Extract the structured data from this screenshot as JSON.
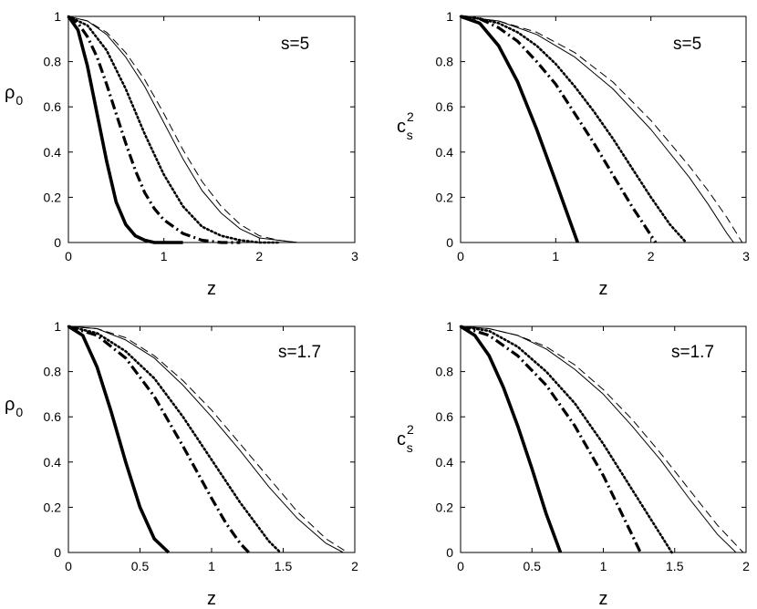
{
  "chart_data": [
    {
      "type": "line",
      "xlabel": "z",
      "ylabel": "ρ",
      "ylabel_sub": "0",
      "ylabel_sup": "",
      "annotation": "s=5",
      "xlim": [
        0,
        3
      ],
      "ylim": [
        0,
        1
      ],
      "xticks": [
        0,
        1,
        2,
        3
      ],
      "xtick_labels": [
        "0",
        "1",
        "2",
        "3"
      ],
      "yticks": [
        0,
        0.2,
        0.4,
        0.6,
        0.8,
        1
      ],
      "ytick_labels": [
        "0",
        "0.2",
        "0.4",
        "0.6",
        "0.8",
        "1"
      ],
      "series": [
        {
          "style": "thick-solid",
          "x": [
            0,
            0.1,
            0.2,
            0.3,
            0.4,
            0.5,
            0.6,
            0.7,
            0.8,
            0.9,
            1.0,
            1.2
          ],
          "y": [
            1.0,
            0.94,
            0.78,
            0.57,
            0.36,
            0.18,
            0.08,
            0.03,
            0.01,
            0.0,
            0.0,
            0.0
          ]
        },
        {
          "style": "dash-dot",
          "x": [
            0,
            0.1,
            0.2,
            0.3,
            0.4,
            0.5,
            0.6,
            0.7,
            0.8,
            0.9,
            1.0,
            1.2,
            1.4,
            1.6,
            1.8
          ],
          "y": [
            1.0,
            0.97,
            0.91,
            0.82,
            0.7,
            0.57,
            0.44,
            0.32,
            0.22,
            0.15,
            0.1,
            0.04,
            0.01,
            0.0,
            0.0
          ]
        },
        {
          "style": "dotted",
          "x": [
            0,
            0.2,
            0.4,
            0.6,
            0.8,
            1.0,
            1.2,
            1.4,
            1.6,
            1.8,
            2.0,
            2.2
          ],
          "y": [
            1.0,
            0.96,
            0.85,
            0.68,
            0.48,
            0.3,
            0.16,
            0.07,
            0.03,
            0.01,
            0.0,
            0.0
          ]
        },
        {
          "style": "thin-solid",
          "x": [
            0,
            0.2,
            0.4,
            0.6,
            0.8,
            1.0,
            1.2,
            1.4,
            1.6,
            1.8,
            2.0,
            2.2,
            2.4,
            2.6,
            2.8
          ],
          "y": [
            1.0,
            0.98,
            0.92,
            0.82,
            0.69,
            0.53,
            0.37,
            0.23,
            0.13,
            0.06,
            0.02,
            0.01,
            0.0,
            0.0,
            0.0
          ]
        },
        {
          "style": "dashed",
          "x": [
            0,
            0.2,
            0.4,
            0.6,
            0.8,
            1.0,
            1.2,
            1.4,
            1.6,
            1.8,
            2.0,
            2.2,
            2.4,
            2.6,
            2.8
          ],
          "y": [
            1.0,
            0.98,
            0.93,
            0.84,
            0.72,
            0.57,
            0.41,
            0.27,
            0.16,
            0.08,
            0.03,
            0.01,
            0.0,
            0.0,
            0.0
          ]
        }
      ]
    },
    {
      "type": "line",
      "xlabel": "z",
      "ylabel": "c",
      "ylabel_sub": "s",
      "ylabel_sup": "2",
      "annotation": "s=5",
      "xlim": [
        0,
        3
      ],
      "ylim": [
        0,
        1
      ],
      "xticks": [
        0,
        1,
        2,
        3
      ],
      "xtick_labels": [
        "0",
        "1",
        "2",
        "3"
      ],
      "yticks": [
        0,
        0.2,
        0.4,
        0.6,
        0.8,
        1
      ],
      "ytick_labels": [
        "0",
        "0.2",
        "0.4",
        "0.6",
        "0.8",
        "1"
      ],
      "series": [
        {
          "style": "thick-solid",
          "x": [
            0,
            0.2,
            0.4,
            0.6,
            0.8,
            1.0,
            1.23
          ],
          "y": [
            1.0,
            0.97,
            0.87,
            0.71,
            0.5,
            0.27,
            0.0
          ]
        },
        {
          "style": "dash-dot",
          "x": [
            0,
            0.2,
            0.4,
            0.6,
            0.8,
            1.0,
            1.2,
            1.4,
            1.6,
            1.8,
            2.05
          ],
          "y": [
            1.0,
            0.99,
            0.95,
            0.89,
            0.8,
            0.7,
            0.57,
            0.44,
            0.3,
            0.16,
            0.0
          ]
        },
        {
          "style": "dotted",
          "x": [
            0,
            0.2,
            0.4,
            0.6,
            0.8,
            1.0,
            1.2,
            1.4,
            1.6,
            1.8,
            2.0,
            2.2,
            2.37
          ],
          "y": [
            1.0,
            0.99,
            0.97,
            0.93,
            0.87,
            0.79,
            0.69,
            0.58,
            0.46,
            0.33,
            0.2,
            0.08,
            0.0
          ]
        },
        {
          "style": "thin-solid",
          "x": [
            0,
            0.4,
            0.8,
            1.2,
            1.6,
            2.0,
            2.4,
            2.6,
            2.8,
            2.87
          ],
          "y": [
            1.0,
            0.98,
            0.92,
            0.82,
            0.68,
            0.5,
            0.29,
            0.17,
            0.04,
            0.0
          ]
        },
        {
          "style": "dashed",
          "x": [
            0,
            0.4,
            0.8,
            1.2,
            1.6,
            2.0,
            2.4,
            2.6,
            2.8,
            2.96
          ],
          "y": [
            1.0,
            0.98,
            0.93,
            0.84,
            0.71,
            0.54,
            0.34,
            0.23,
            0.11,
            0.0
          ]
        }
      ]
    },
    {
      "type": "line",
      "xlabel": "z",
      "ylabel": "ρ",
      "ylabel_sub": "0",
      "ylabel_sup": "",
      "annotation": "s=1.7",
      "xlim": [
        0,
        2
      ],
      "ylim": [
        0,
        1
      ],
      "xticks": [
        0,
        0.5,
        1,
        1.5,
        2
      ],
      "xtick_labels": [
        "0",
        "0.5",
        "1",
        "1.5",
        "2"
      ],
      "yticks": [
        0,
        0.2,
        0.4,
        0.6,
        0.8,
        1
      ],
      "ytick_labels": [
        "0",
        "0.2",
        "0.4",
        "0.6",
        "0.8",
        "1"
      ],
      "series": [
        {
          "style": "thick-solid",
          "x": [
            0,
            0.1,
            0.2,
            0.3,
            0.4,
            0.5,
            0.6,
            0.7
          ],
          "y": [
            1.0,
            0.96,
            0.82,
            0.62,
            0.4,
            0.2,
            0.06,
            0.0
          ]
        },
        {
          "style": "dash-dot",
          "x": [
            0,
            0.2,
            0.4,
            0.6,
            0.8,
            1.0,
            1.1,
            1.2,
            1.26
          ],
          "y": [
            1.0,
            0.96,
            0.86,
            0.69,
            0.47,
            0.24,
            0.13,
            0.04,
            0.0
          ]
        },
        {
          "style": "dotted",
          "x": [
            0,
            0.2,
            0.4,
            0.6,
            0.8,
            1.0,
            1.2,
            1.4,
            1.48
          ],
          "y": [
            1.0,
            0.97,
            0.89,
            0.77,
            0.6,
            0.41,
            0.22,
            0.05,
            0.0
          ]
        },
        {
          "style": "thin-solid",
          "x": [
            0,
            0.2,
            0.4,
            0.6,
            0.8,
            1.0,
            1.2,
            1.4,
            1.6,
            1.8,
            1.92
          ],
          "y": [
            1.0,
            0.99,
            0.94,
            0.86,
            0.74,
            0.6,
            0.45,
            0.29,
            0.15,
            0.04,
            0.0
          ]
        },
        {
          "style": "dashed",
          "x": [
            0,
            0.2,
            0.4,
            0.6,
            0.8,
            1.0,
            1.2,
            1.4,
            1.6,
            1.8,
            1.95
          ],
          "y": [
            1.0,
            0.99,
            0.95,
            0.87,
            0.76,
            0.63,
            0.48,
            0.33,
            0.18,
            0.06,
            0.0
          ]
        }
      ]
    },
    {
      "type": "line",
      "xlabel": "z",
      "ylabel": "c",
      "ylabel_sub": "s",
      "ylabel_sup": "2",
      "annotation": "s=1.7",
      "xlim": [
        0,
        2
      ],
      "ylim": [
        0,
        1
      ],
      "xticks": [
        0,
        0.5,
        1,
        1.5,
        2
      ],
      "xtick_labels": [
        "0",
        "0.5",
        "1",
        "1.5",
        "2"
      ],
      "yticks": [
        0,
        0.2,
        0.4,
        0.6,
        0.8,
        1
      ],
      "ytick_labels": [
        "0",
        "0.2",
        "0.4",
        "0.6",
        "0.8",
        "1"
      ],
      "series": [
        {
          "style": "thick-solid",
          "x": [
            0,
            0.1,
            0.2,
            0.3,
            0.4,
            0.5,
            0.6,
            0.7
          ],
          "y": [
            1.0,
            0.96,
            0.87,
            0.73,
            0.56,
            0.37,
            0.17,
            0.0
          ]
        },
        {
          "style": "dash-dot",
          "x": [
            0,
            0.2,
            0.4,
            0.6,
            0.8,
            1.0,
            1.1,
            1.2,
            1.26
          ],
          "y": [
            1.0,
            0.96,
            0.87,
            0.74,
            0.56,
            0.34,
            0.21,
            0.08,
            0.0
          ]
        },
        {
          "style": "dotted",
          "x": [
            0,
            0.2,
            0.4,
            0.6,
            0.8,
            1.0,
            1.2,
            1.4,
            1.48
          ],
          "y": [
            1.0,
            0.98,
            0.91,
            0.8,
            0.66,
            0.48,
            0.28,
            0.08,
            0.0
          ]
        },
        {
          "style": "thin-solid",
          "x": [
            0,
            0.2,
            0.4,
            0.6,
            0.8,
            1.0,
            1.2,
            1.4,
            1.6,
            1.8,
            1.93
          ],
          "y": [
            1.0,
            0.99,
            0.96,
            0.9,
            0.81,
            0.7,
            0.56,
            0.41,
            0.24,
            0.08,
            0.0
          ]
        },
        {
          "style": "dashed",
          "x": [
            0,
            0.2,
            0.4,
            0.6,
            0.8,
            1.0,
            1.2,
            1.4,
            1.6,
            1.8,
            1.98
          ],
          "y": [
            1.0,
            0.99,
            0.96,
            0.91,
            0.83,
            0.72,
            0.59,
            0.44,
            0.28,
            0.12,
            0.0
          ]
        }
      ]
    }
  ]
}
